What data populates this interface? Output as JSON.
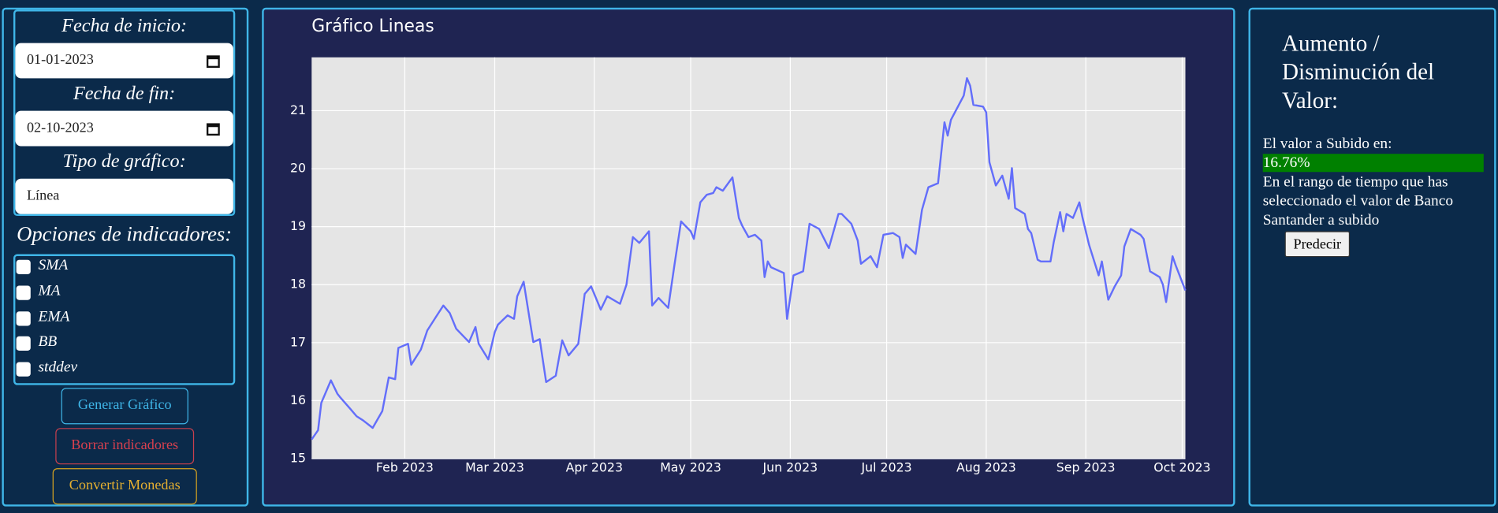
{
  "sidebar": {
    "start_label": "Fecha de inicio:",
    "start_value": "01-01-2023",
    "end_label": "Fecha de fin:",
    "end_value": "02-10-2023",
    "type_label": "Tipo de gráfico:",
    "type_value": "Línea",
    "indicators_label": "Opciones de indicadores:",
    "indicators": [
      "SMA",
      "MA",
      "EMA",
      "BB",
      "stddev"
    ],
    "buttons": [
      "Generar Gráfico",
      "Borrar indicadores",
      "Convertir Monedas"
    ]
  },
  "chart_data": {
    "type": "line",
    "title": "Gráfico Lineas",
    "color": "#636efa",
    "grid": true,
    "x": [
      "2023-01-03",
      "2023-01-05",
      "2023-01-06",
      "2023-01-09",
      "2023-01-11",
      "2023-01-12",
      "2023-01-15",
      "2023-01-17",
      "2023-01-19",
      "2023-01-22",
      "2023-01-25",
      "2023-01-27",
      "2023-01-29",
      "2023-01-30",
      "2023-02-02",
      "2023-02-03",
      "2023-02-06",
      "2023-02-08",
      "2023-02-11",
      "2023-02-13",
      "2023-02-15",
      "2023-02-17",
      "2023-02-21",
      "2023-02-23",
      "2023-02-24",
      "2023-02-27",
      "2023-03-01",
      "2023-03-02",
      "2023-03-05",
      "2023-03-07",
      "2023-03-08",
      "2023-03-10",
      "2023-03-13",
      "2023-03-15",
      "2023-03-17",
      "2023-03-20",
      "2023-03-22",
      "2023-03-24",
      "2023-03-27",
      "2023-03-29",
      "2023-03-31",
      "2023-04-03",
      "2023-04-05",
      "2023-04-09",
      "2023-04-11",
      "2023-04-13",
      "2023-04-15",
      "2023-04-18",
      "2023-04-19",
      "2023-04-21",
      "2023-04-24",
      "2023-04-26",
      "2023-04-28",
      "2023-05-01",
      "2023-05-02",
      "2023-05-04",
      "2023-05-06",
      "2023-05-08",
      "2023-05-09",
      "2023-05-11",
      "2023-05-14",
      "2023-05-16",
      "2023-05-17",
      "2023-05-19",
      "2023-05-21",
      "2023-05-23",
      "2023-05-24",
      "2023-05-25",
      "2023-05-26",
      "2023-05-30",
      "2023-05-31",
      "2023-06-02",
      "2023-06-05",
      "2023-06-07",
      "2023-06-10",
      "2023-06-13",
      "2023-06-16",
      "2023-06-17",
      "2023-06-20",
      "2023-06-22",
      "2023-06-23",
      "2023-06-26",
      "2023-06-28",
      "2023-06-30",
      "2023-07-03",
      "2023-07-05",
      "2023-07-06",
      "2023-07-07",
      "2023-07-10",
      "2023-07-12",
      "2023-07-14",
      "2023-07-17",
      "2023-07-19",
      "2023-07-20",
      "2023-07-21",
      "2023-07-25",
      "2023-07-26",
      "2023-07-27",
      "2023-07-28",
      "2023-07-31",
      "2023-08-01",
      "2023-08-02",
      "2023-08-04",
      "2023-08-06",
      "2023-08-08",
      "2023-08-09",
      "2023-08-10",
      "2023-08-13",
      "2023-08-14",
      "2023-08-15",
      "2023-08-17",
      "2023-08-18",
      "2023-08-21",
      "2023-08-22",
      "2023-08-24",
      "2023-08-25",
      "2023-08-26",
      "2023-08-28",
      "2023-08-30",
      "2023-08-31",
      "2023-09-02",
      "2023-09-05",
      "2023-09-06",
      "2023-09-08",
      "2023-09-10",
      "2023-09-12",
      "2023-09-13",
      "2023-09-15",
      "2023-09-18",
      "2023-09-19",
      "2023-09-21",
      "2023-09-24",
      "2023-09-25",
      "2023-09-26",
      "2023-09-28",
      "2023-09-29",
      "2023-10-02"
    ],
    "values": [
      15.33,
      15.49,
      15.96,
      16.35,
      16.12,
      16.05,
      15.86,
      15.73,
      15.66,
      15.53,
      15.82,
      16.4,
      16.37,
      16.91,
      16.98,
      16.62,
      16.88,
      17.21,
      17.47,
      17.64,
      17.51,
      17.24,
      17.01,
      17.27,
      16.98,
      16.71,
      17.18,
      17.31,
      17.47,
      17.41,
      17.8,
      18.05,
      17.01,
      17.06,
      16.32,
      16.43,
      17.04,
      16.78,
      16.98,
      17.84,
      17.97,
      17.57,
      17.8,
      17.67,
      18.0,
      18.82,
      18.72,
      18.92,
      17.64,
      17.77,
      17.6,
      18.36,
      19.09,
      18.92,
      18.79,
      19.42,
      19.55,
      19.58,
      19.68,
      19.62,
      19.85,
      19.15,
      19.02,
      18.82,
      18.86,
      18.76,
      18.13,
      18.4,
      18.3,
      18.2,
      17.41,
      18.16,
      18.23,
      19.05,
      18.96,
      18.63,
      19.22,
      19.22,
      19.05,
      18.76,
      18.36,
      18.49,
      18.3,
      18.86,
      18.89,
      18.82,
      18.46,
      18.69,
      18.53,
      19.29,
      19.68,
      19.75,
      20.8,
      20.57,
      20.84,
      21.26,
      21.56,
      21.43,
      21.1,
      21.07,
      20.97,
      20.11,
      19.71,
      19.88,
      19.48,
      20.01,
      19.32,
      19.22,
      18.96,
      18.89,
      18.43,
      18.4,
      18.4,
      18.73,
      19.25,
      18.92,
      19.22,
      19.15,
      19.42,
      19.15,
      18.69,
      18.16,
      18.4,
      17.74,
      17.97,
      18.16,
      18.66,
      18.96,
      18.86,
      18.79,
      18.23,
      18.13,
      18.0,
      17.7,
      18.49,
      18.33,
      17.9
    ],
    "xlim": [
      "2023-01-03",
      "2023-10-02"
    ],
    "xticks": [
      {
        "value": "2023-02-01",
        "label": "Feb 2023"
      },
      {
        "value": "2023-03-01",
        "label": "Mar 2023"
      },
      {
        "value": "2023-04-01",
        "label": "Apr 2023"
      },
      {
        "value": "2023-05-01",
        "label": "May 2023"
      },
      {
        "value": "2023-06-01",
        "label": "Jun 2023"
      },
      {
        "value": "2023-07-01",
        "label": "Jul 2023"
      },
      {
        "value": "2023-08-01",
        "label": "Aug 2023"
      },
      {
        "value": "2023-09-01",
        "label": "Sep 2023"
      },
      {
        "value": "2023-10-01",
        "label": "Oct 2023"
      }
    ],
    "ylim": [
      15,
      21.92
    ],
    "yticks": [
      15,
      16,
      17,
      18,
      19,
      20,
      21
    ]
  },
  "result_panel": {
    "title": "Aumento / Disminución del Valor:",
    "result_label": "El valor a Subido en:",
    "result_value": "16.76%",
    "description": "En el rango de tiempo que has seleccionado el valor de Banco Santander a subido",
    "button": "Predecir"
  }
}
